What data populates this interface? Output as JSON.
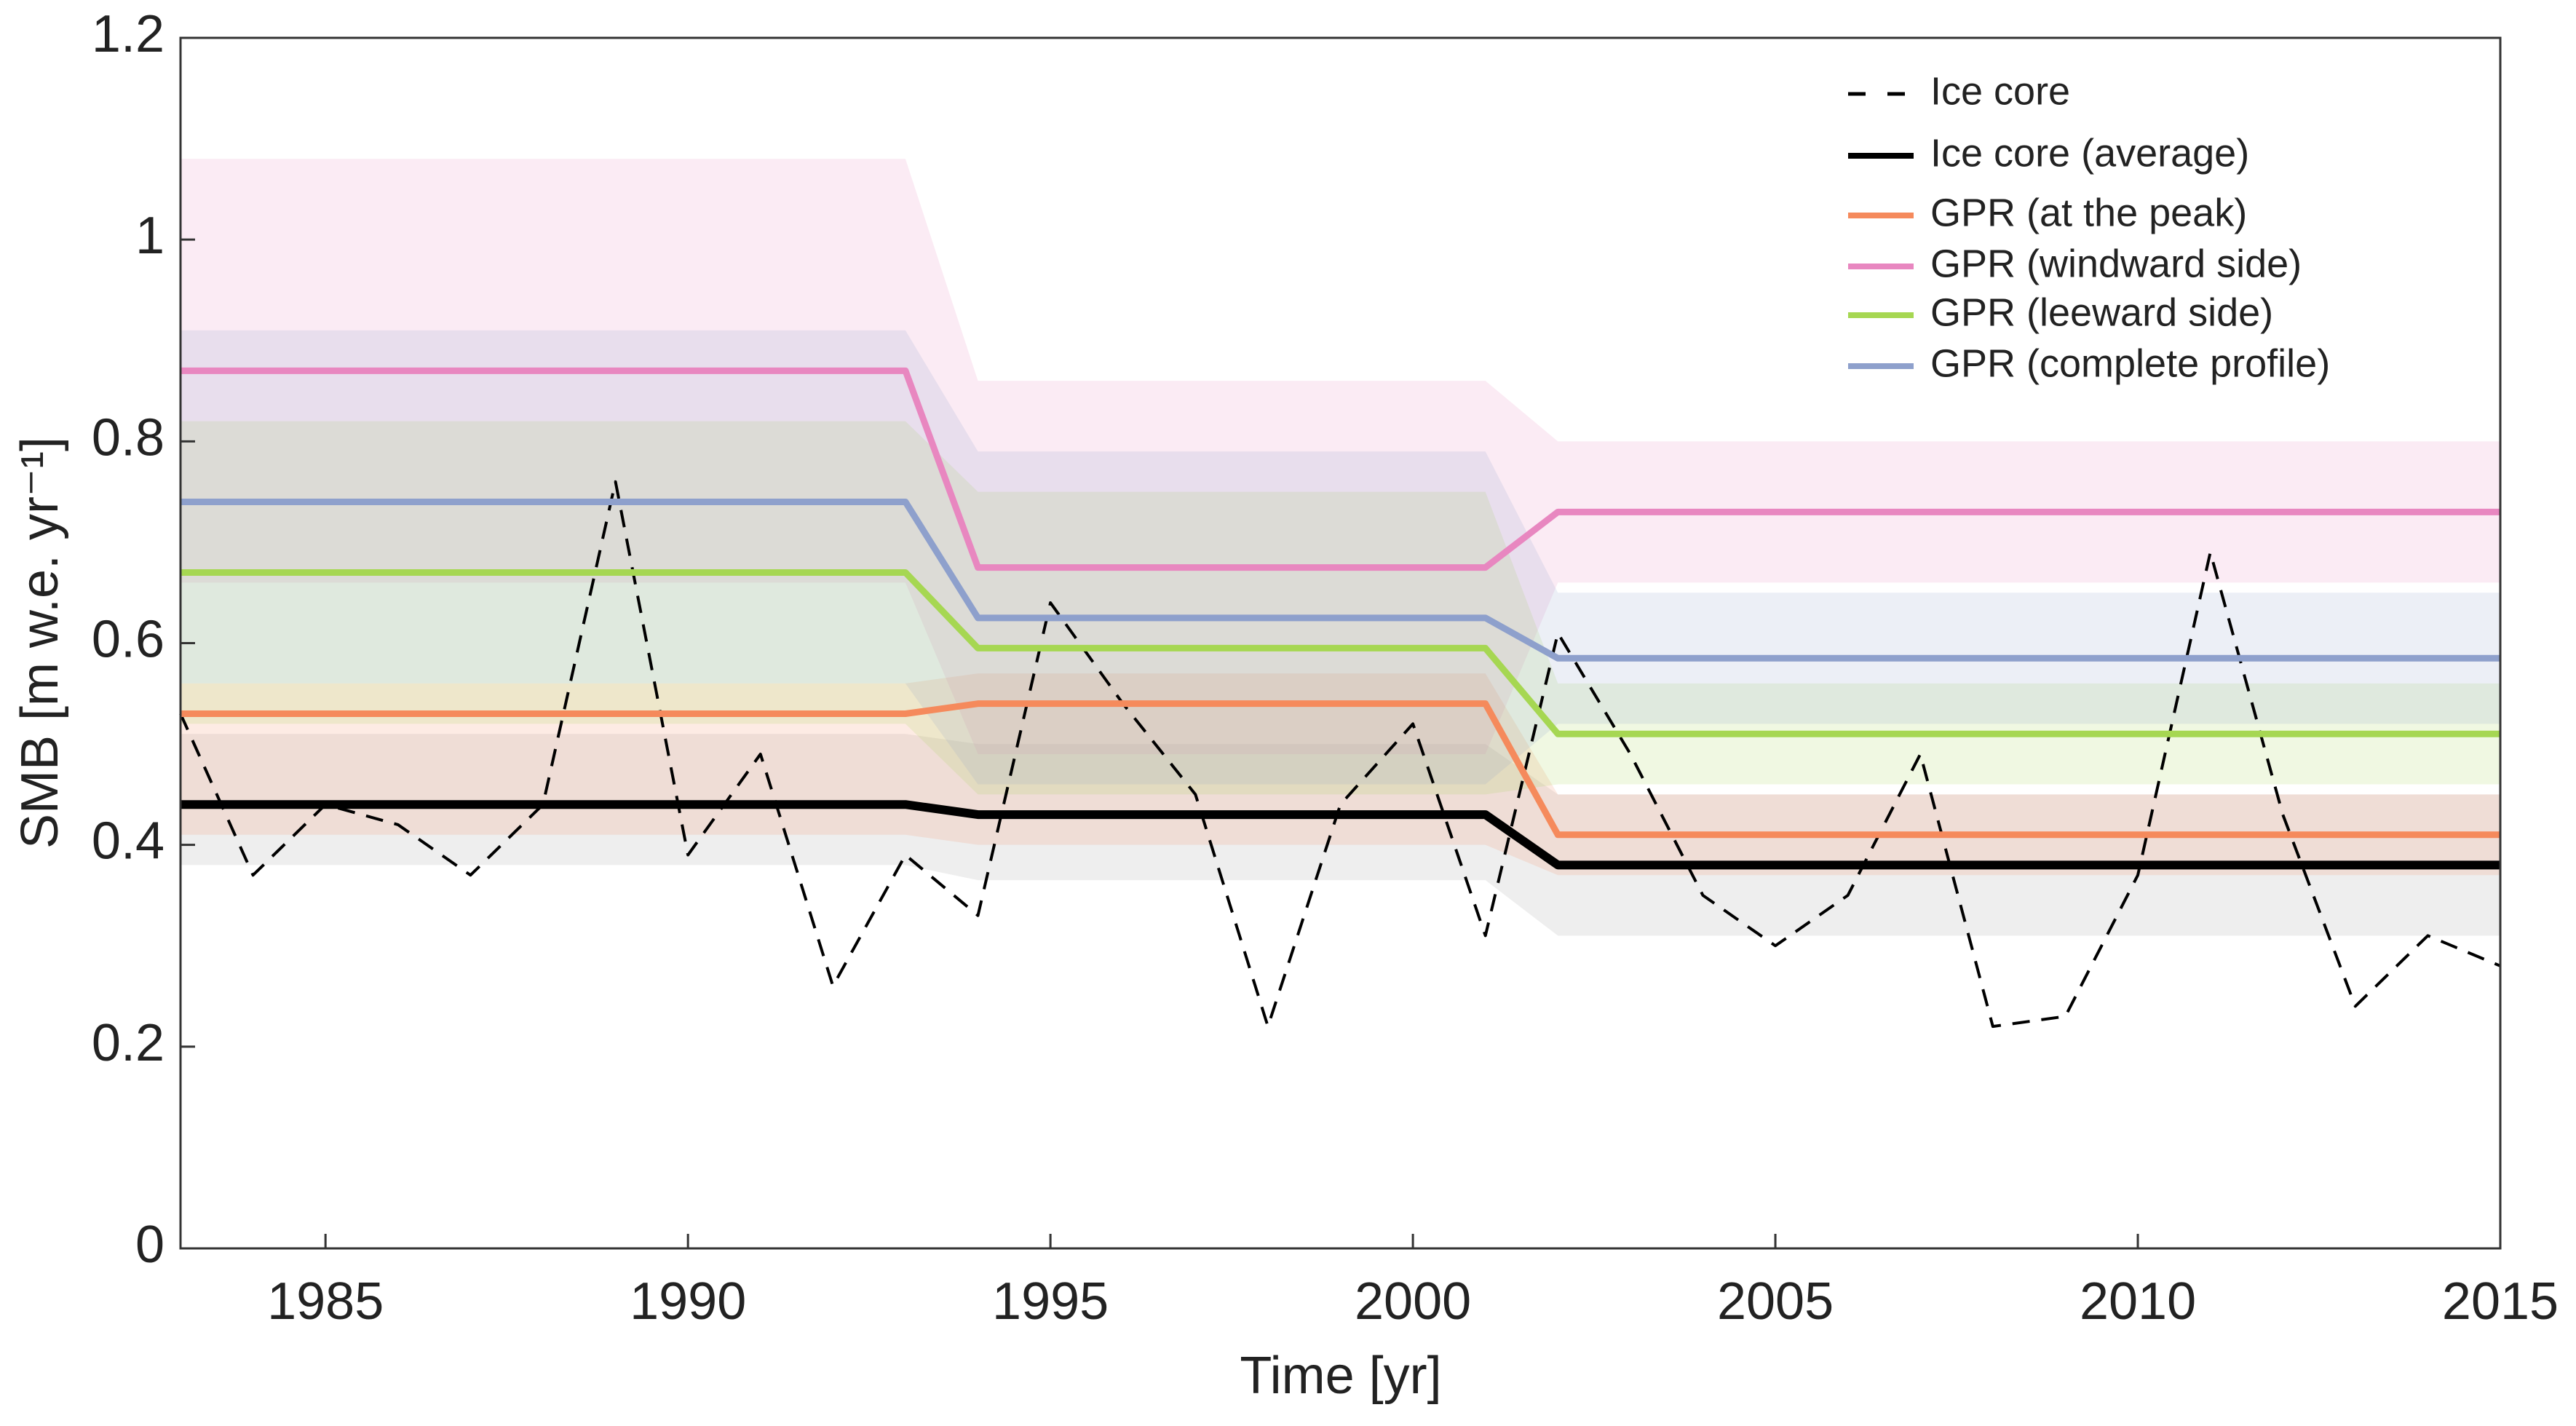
{
  "chart_data": {
    "type": "line",
    "x_label": "Time [yr]",
    "y_label": "SMB [m w.e. yr⁻¹]",
    "xlim": [
      1983,
      2015
    ],
    "xticks": [
      1985,
      1990,
      1995,
      2000,
      2005,
      2010,
      2015
    ],
    "ylim": [
      0,
      1.2
    ],
    "yticks": [
      0,
      0.2,
      0.4,
      0.6,
      0.8,
      1,
      1.2
    ],
    "legend": "upper right",
    "series": [
      {
        "name": "Ice core",
        "color": "#000000",
        "style": "dashed",
        "x": [
          1983,
          1984,
          1985,
          1986,
          1987,
          1988,
          1989,
          1990,
          1991,
          1992,
          1993,
          1994,
          1995,
          1996,
          1997,
          1998,
          1999,
          2000,
          2001,
          2002,
          2003,
          2004,
          2005,
          2006,
          2007,
          2008,
          2009,
          2010,
          2011,
          2012,
          2013,
          2014,
          2015
        ],
        "values": [
          0.53,
          0.37,
          0.44,
          0.42,
          0.37,
          0.44,
          0.76,
          0.39,
          0.49,
          0.26,
          0.39,
          0.33,
          0.64,
          0.54,
          0.45,
          0.22,
          0.44,
          0.52,
          0.31,
          0.61,
          0.49,
          0.35,
          0.3,
          0.35,
          0.49,
          0.22,
          0.23,
          0.37,
          0.69,
          0.43,
          0.24,
          0.31,
          0.28
        ]
      },
      {
        "name": "Ice core (average)",
        "color": "#000000",
        "style": "solid",
        "band_color": "#999999",
        "x": [
          1983,
          1993,
          1994,
          2001,
          2002,
          2015
        ],
        "values": [
          0.44,
          0.44,
          0.43,
          0.43,
          0.38,
          0.38
        ],
        "upper": [
          0.51,
          0.51,
          0.5,
          0.5,
          0.45,
          0.45
        ],
        "lower": [
          0.38,
          0.38,
          0.365,
          0.365,
          0.31,
          0.31
        ]
      },
      {
        "name": "GPR (at the peak)",
        "color": "#f58a5c",
        "style": "solid",
        "band_color": "#f58a5c",
        "x": [
          1983,
          1993,
          1994,
          2001,
          2002,
          2015
        ],
        "values": [
          0.53,
          0.53,
          0.54,
          0.54,
          0.41,
          0.41
        ],
        "upper": [
          0.56,
          0.56,
          0.57,
          0.57,
          0.45,
          0.45
        ],
        "lower": [
          0.41,
          0.41,
          0.4,
          0.4,
          0.37,
          0.37
        ]
      },
      {
        "name": "GPR (windward side)",
        "color": "#e887c0",
        "style": "solid",
        "band_color": "#e887c0",
        "x": [
          1983,
          1993,
          1994,
          2001,
          2002,
          2015
        ],
        "values": [
          0.87,
          0.87,
          0.675,
          0.675,
          0.73,
          0.73
        ],
        "upper": [
          1.08,
          1.08,
          0.86,
          0.86,
          0.8,
          0.8
        ],
        "lower": [
          0.66,
          0.66,
          0.49,
          0.49,
          0.66,
          0.66
        ]
      },
      {
        "name": "GPR (leeward side)",
        "color": "#a6d752",
        "style": "solid",
        "band_color": "#a6d752",
        "x": [
          1983,
          1993,
          1994,
          2001,
          2002,
          2015
        ],
        "values": [
          0.67,
          0.67,
          0.595,
          0.595,
          0.51,
          0.51
        ],
        "upper": [
          0.82,
          0.82,
          0.75,
          0.75,
          0.56,
          0.56
        ],
        "lower": [
          0.52,
          0.52,
          0.45,
          0.45,
          0.46,
          0.46
        ]
      },
      {
        "name": "GPR (complete profile)",
        "color": "#8ea0cc",
        "style": "solid",
        "band_color": "#8ea0cc",
        "x": [
          1983,
          1993,
          1994,
          2001,
          2002,
          2015
        ],
        "values": [
          0.74,
          0.74,
          0.625,
          0.625,
          0.585,
          0.585
        ],
        "upper": [
          0.91,
          0.91,
          0.79,
          0.79,
          0.65,
          0.65
        ],
        "lower": [
          0.56,
          0.56,
          0.46,
          0.46,
          0.52,
          0.52
        ]
      }
    ]
  }
}
